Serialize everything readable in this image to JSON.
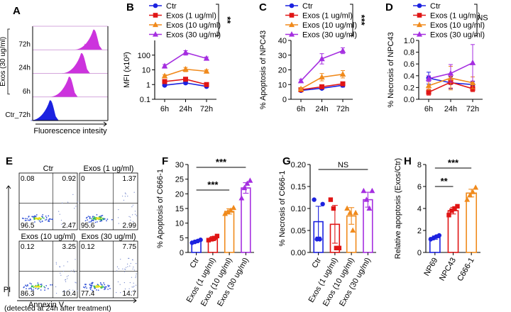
{
  "colors": {
    "ctr": "#1c22e0",
    "e1": "#e01515",
    "e10": "#f08a1c",
    "e30": "#a52ee0",
    "flow": "#cc33dd",
    "axis": "#000000"
  },
  "chart_data": [
    {
      "panel": "A",
      "type": "histogram",
      "xlabel": "Fluorescence intesity",
      "ylabel": "Exos (30 ug/ml)",
      "tracks": [
        {
          "label": "72h",
          "peak": 0.82
        },
        {
          "label": "24h",
          "peak": 0.64
        },
        {
          "label": "6h",
          "peak": 0.46
        },
        {
          "label": "Ctr_72h",
          "peak": 0.18
        }
      ]
    },
    {
      "panel": "B",
      "type": "line",
      "scale": "log",
      "x": [
        "6h",
        "24h",
        "72h"
      ],
      "ylabel": "MFI (x10²)",
      "yticks": [
        "0.1",
        "1",
        "10",
        "100"
      ],
      "ylim": [
        0.1,
        1000
      ],
      "significance": "**",
      "series": [
        {
          "name": "Ctr",
          "values": [
            0.9,
            1.3,
            0.75
          ],
          "err": [
            0.1,
            0.25,
            0.1
          ]
        },
        {
          "name": "Exos (1 ug/ml)",
          "values": [
            1.6,
            2.3,
            1.0
          ],
          "err": [
            0.2,
            0.35,
            0.15
          ]
        },
        {
          "name": "Exos (10 ug/ml)",
          "values": [
            3.8,
            11,
            8
          ],
          "err": [
            0.8,
            3.5,
            2
          ]
        },
        {
          "name": "Exos (30 ug/ml)",
          "values": [
            18,
            150,
            60
          ],
          "err": [
            5,
            50,
            15
          ]
        }
      ]
    },
    {
      "panel": "C",
      "type": "line",
      "x": [
        "6h",
        "24h",
        "72h"
      ],
      "ylabel": "% Apoptosis of NPC43",
      "yticks": [
        "0",
        "10",
        "20",
        "30",
        "40"
      ],
      "ylim": [
        0,
        40
      ],
      "significance": "***",
      "series": [
        {
          "name": "Ctr",
          "values": [
            6,
            7.5,
            9.5
          ],
          "err": [
            0.5,
            1,
            1.2
          ]
        },
        {
          "name": "Exos (1 ug/ml)",
          "values": [
            6.5,
            8.5,
            10.5
          ],
          "err": [
            0.5,
            1,
            1.2
          ]
        },
        {
          "name": "Exos (10 ug/ml)",
          "values": [
            7,
            15,
            17
          ],
          "err": [
            0.8,
            2.5,
            2.5
          ]
        },
        {
          "name": "Exos (30 ug/ml)",
          "values": [
            12.5,
            27.5,
            33
          ],
          "err": [
            1,
            3.5,
            2
          ]
        }
      ]
    },
    {
      "panel": "D",
      "type": "line",
      "x": [
        "6h",
        "24h",
        "72h"
      ],
      "ylabel": "% Necrosis of NPC43",
      "yticks": [
        "0.0",
        "0.2",
        "0.4",
        "0.6",
        "0.8",
        "1.0"
      ],
      "ylim": [
        0,
        1
      ],
      "significance": "NS",
      "series": [
        {
          "name": "Ctr",
          "values": [
            0.36,
            0.28,
            0.25
          ],
          "err": [
            0.1,
            0.1,
            0.05
          ]
        },
        {
          "name": "Exos (1 ug/ml)",
          "values": [
            0.12,
            0.29,
            0.18
          ],
          "err": [
            0.05,
            0.1,
            0.05
          ]
        },
        {
          "name": "Exos (10 ug/ml)",
          "values": [
            0.23,
            0.36,
            0.28
          ],
          "err": [
            0.07,
            0.2,
            0.1
          ]
        },
        {
          "name": "Exos (30 ug/ml)",
          "values": [
            0.35,
            0.44,
            0.62
          ],
          "err": [
            0.05,
            0.15,
            0.31
          ]
        }
      ]
    },
    {
      "panel": "E",
      "type": "scatter",
      "xlabel": "Annexin V",
      "ylabel": "PI",
      "note": "(detected at 24h after treatment)",
      "plots": [
        {
          "title": "Ctr",
          "quadrants": [
            "0.08",
            "0.92",
            "96.5",
            "2.47"
          ]
        },
        {
          "title": "Exos (1 ug/ml)",
          "quadrants": [
            "0",
            "1.37",
            "95.6",
            "2.99"
          ]
        },
        {
          "title": "Exos (10 ug/ml)",
          "quadrants": [
            "0.12",
            "3.25",
            "86.3",
            "10.4"
          ]
        },
        {
          "title": "Exos (30 ug/ml)",
          "quadrants": [
            "0.12",
            "7.75",
            "77.4",
            "14.7"
          ]
        }
      ]
    },
    {
      "panel": "F",
      "type": "bar",
      "categories": [
        "Ctr",
        "Exos (1 ug/ml)",
        "Exos (10 ug/ml)",
        "Exos (30 ug/ml)"
      ],
      "values": [
        3.8,
        4.7,
        14,
        22
      ],
      "err": [
        0.4,
        0.7,
        0.9,
        1.8
      ],
      "ylabel": "% Apoptosis of C666-1",
      "yticks": [
        "0",
        "5",
        "10",
        "15",
        "20",
        "25",
        "30"
      ],
      "ylim": [
        0,
        30
      ],
      "points": [
        [
          3.3,
          3.6,
          3.9,
          4.3
        ],
        [
          4.2,
          4.5,
          4.9,
          5.6
        ],
        [
          13.2,
          13.8,
          14.3,
          15.2
        ],
        [
          18.5,
          22,
          23.5,
          24.5
        ]
      ],
      "significance": [
        {
          "from": 0,
          "to": 2,
          "label": "***"
        },
        {
          "from": 0,
          "to": 3,
          "label": "***"
        }
      ]
    },
    {
      "panel": "G",
      "type": "bar",
      "categories": [
        "Ctr",
        "Exos (1 ug/ml)",
        "Exos (10 ug/ml)",
        "Exos (30 ug/ml)"
      ],
      "values": [
        0.07,
        0.064,
        0.083,
        0.12
      ],
      "err": [
        0.035,
        0.043,
        0.019,
        0.017
      ],
      "ylabel": "% Necrosis of C666-1",
      "yticks": [
        "0.00",
        "0.05",
        "0.10",
        "0.15",
        "0.20"
      ],
      "ylim": [
        0,
        0.2
      ],
      "points": [
        [
          0.12,
          0.03,
          0.03,
          0.11
        ],
        [
          0.12,
          0.1,
          0.01,
          0.01
        ],
        [
          0.1,
          0.09,
          0.05,
          0.09
        ],
        [
          0.14,
          0.12,
          0.1,
          0.14
        ]
      ],
      "significance": [
        {
          "from": 0,
          "to": 3,
          "label": "NS"
        }
      ]
    },
    {
      "panel": "H",
      "type": "bar",
      "categories": [
        "NP69",
        "NPC43",
        "C666-1"
      ],
      "values": [
        1.35,
        3.8,
        5.4
      ],
      "err": [
        0.15,
        0.3,
        0.35
      ],
      "ylabel": "Relative apoptosis (Exos/Ctr)",
      "yticks": [
        "0",
        "2",
        "4",
        "6",
        "8"
      ],
      "ylim": [
        0,
        8
      ],
      "points": [
        [
          1.2,
          1.3,
          1.45,
          1.55
        ],
        [
          3.4,
          3.8,
          4.0,
          4.2
        ],
        [
          4.8,
          5.2,
          5.5,
          5.9
        ]
      ],
      "significance": [
        {
          "from": 0,
          "to": 1,
          "label": "**"
        },
        {
          "from": 0,
          "to": 2,
          "label": "***"
        }
      ]
    }
  ]
}
